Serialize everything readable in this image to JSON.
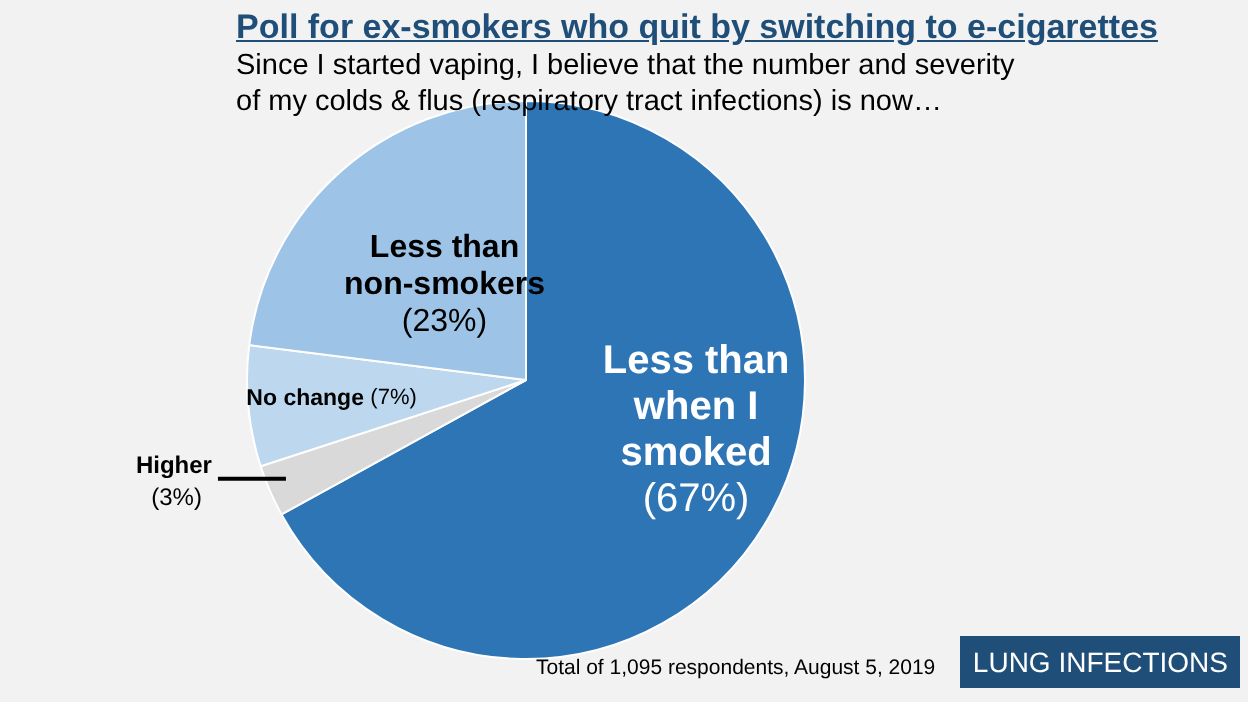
{
  "chart_data": {
    "type": "pie",
    "title": "Poll for ex-smokers who quit by switching to e-cigarettes",
    "subtitle": "Since I started vaping, I believe that the number and severity of my colds & flus (respiratory tract infections) is now…",
    "categories": [
      "Less than when I smoked",
      "Higher",
      "No change",
      "Less than non-smokers"
    ],
    "values": [
      67,
      3,
      7,
      23
    ],
    "colors": [
      "#2e75b6",
      "#d9d9d9",
      "#bdd7ee",
      "#9dc3e6"
    ],
    "value_labels": [
      "(67%)",
      "(3%)",
      "(7%)",
      "(23%)"
    ],
    "legend": false,
    "annotations": [
      "Total of 1,095 respondents, August 5, 2019",
      "LUNG INFECTIONS"
    ]
  }
}
